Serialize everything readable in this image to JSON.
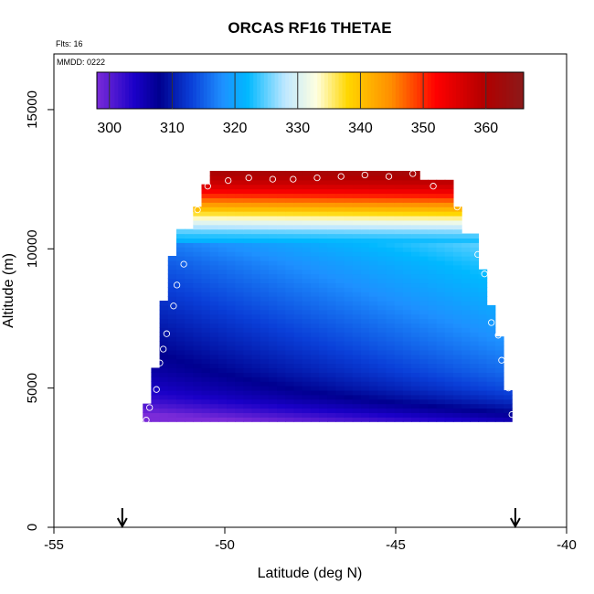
{
  "chart_data": {
    "type": "heatmap",
    "title": "ORCAS RF16 THETAE",
    "xlabel": "Latitude (deg N)",
    "ylabel": "Altitude (m)",
    "xlim": [
      -55,
      -40
    ],
    "ylim": [
      0,
      17000
    ],
    "x_ticks": [
      "-55",
      "-50",
      "-45",
      "-40"
    ],
    "x_tick_values": [
      -55,
      -50,
      -45,
      -40
    ],
    "y_ticks": [
      "0",
      "5000",
      "10000",
      "15000"
    ],
    "y_tick_values": [
      0,
      5000,
      10000,
      15000
    ],
    "annotations": {
      "flights": "Flts: 16",
      "date": "MMDD: 0222"
    },
    "colorbar": {
      "range": [
        298,
        366
      ],
      "tick_labels": [
        "300",
        "310",
        "320",
        "330",
        "340",
        "350",
        "360"
      ],
      "tick_values": [
        300,
        310,
        320,
        330,
        340,
        350,
        360
      ],
      "colors": [
        "#7b2bd8",
        "#1a00c8",
        "#00008f",
        "#0a3fd8",
        "#1e90ff",
        "#00b8ff",
        "#bfe8ff",
        "#ffffe0",
        "#ffd700",
        "#ff8c00",
        "#ff0000",
        "#b00000",
        "#8b1a1a"
      ],
      "color_values": [
        298,
        304,
        308,
        313,
        318,
        322,
        328,
        333,
        338,
        345,
        352,
        360,
        366
      ]
    },
    "field": {
      "lat_range": [
        -52.4,
        -41.6
      ],
      "alt_range": [
        3800,
        12800
      ],
      "profile_left_edge": [
        [
          3800,
          -52.4
        ],
        [
          4500,
          -52.4
        ],
        [
          4500,
          -52.2
        ],
        [
          5800,
          -52.2
        ],
        [
          5800,
          -51.9
        ],
        [
          6800,
          -51.9
        ],
        [
          6800,
          -51.8
        ],
        [
          8100,
          -51.8
        ],
        [
          8100,
          -51.6
        ],
        [
          9700,
          -51.6
        ],
        [
          9700,
          -51.3
        ],
        [
          10700,
          -51.3
        ],
        [
          10700,
          -51.0
        ],
        [
          11500,
          -51.0
        ],
        [
          11500,
          -50.8
        ],
        [
          12300,
          -50.8
        ],
        [
          12300,
          -50.5
        ],
        [
          12800,
          -50.5
        ]
      ],
      "profile_right_edge": [
        [
          4000,
          -41.6
        ],
        [
          4900,
          -41.6
        ],
        [
          4900,
          -41.8
        ],
        [
          6800,
          -41.8
        ],
        [
          6800,
          -42.0
        ],
        [
          7900,
          -42.0
        ],
        [
          7900,
          -42.3
        ],
        [
          9300,
          -42.3
        ],
        [
          9300,
          -42.6
        ],
        [
          10500,
          -42.6
        ],
        [
          10500,
          -43.0
        ],
        [
          11500,
          -43.0
        ],
        [
          11500,
          -43.4
        ],
        [
          12500,
          -43.4
        ],
        [
          12500,
          -44.3
        ],
        [
          12800,
          -44.3
        ]
      ],
      "thetae_profile": [
        [
          3800,
          300
        ],
        [
          4200,
          304
        ],
        [
          4600,
          307
        ],
        [
          5000,
          309
        ],
        [
          5600,
          311
        ],
        [
          6500,
          313
        ],
        [
          7500,
          315
        ],
        [
          8500,
          317
        ],
        [
          9500,
          319
        ],
        [
          10200,
          321
        ],
        [
          10600,
          325
        ],
        [
          10900,
          330
        ],
        [
          11200,
          336
        ],
        [
          11500,
          342
        ],
        [
          11900,
          350
        ],
        [
          12300,
          357
        ],
        [
          12800,
          362
        ]
      ],
      "latitudinal_gradient_per_deg": 0.9
    },
    "flight_points": [
      [
        -52.3,
        3850
      ],
      [
        -52.2,
        4300
      ],
      [
        -52.0,
        4950
      ],
      [
        -51.9,
        5900
      ],
      [
        -51.8,
        6400
      ],
      [
        -51.7,
        6950
      ],
      [
        -51.5,
        7950
      ],
      [
        -51.4,
        8700
      ],
      [
        -51.2,
        9450
      ],
      [
        -50.8,
        11400
      ],
      [
        -50.5,
        12250
      ],
      [
        -49.9,
        12450
      ],
      [
        -49.3,
        12550
      ],
      [
        -48.6,
        12500
      ],
      [
        -48.0,
        12500
      ],
      [
        -47.3,
        12550
      ],
      [
        -46.6,
        12600
      ],
      [
        -45.9,
        12650
      ],
      [
        -45.2,
        12600
      ],
      [
        -44.5,
        12700
      ],
      [
        -43.9,
        12250
      ],
      [
        -43.2,
        11500
      ],
      [
        -42.6,
        9800
      ],
      [
        -42.4,
        9100
      ],
      [
        -42.2,
        7350
      ],
      [
        -42.0,
        6900
      ],
      [
        -41.9,
        6000
      ],
      [
        -41.7,
        5000
      ],
      [
        -41.6,
        4050
      ]
    ],
    "arrows_at_lat": [
      -53.0,
      -41.5
    ]
  }
}
